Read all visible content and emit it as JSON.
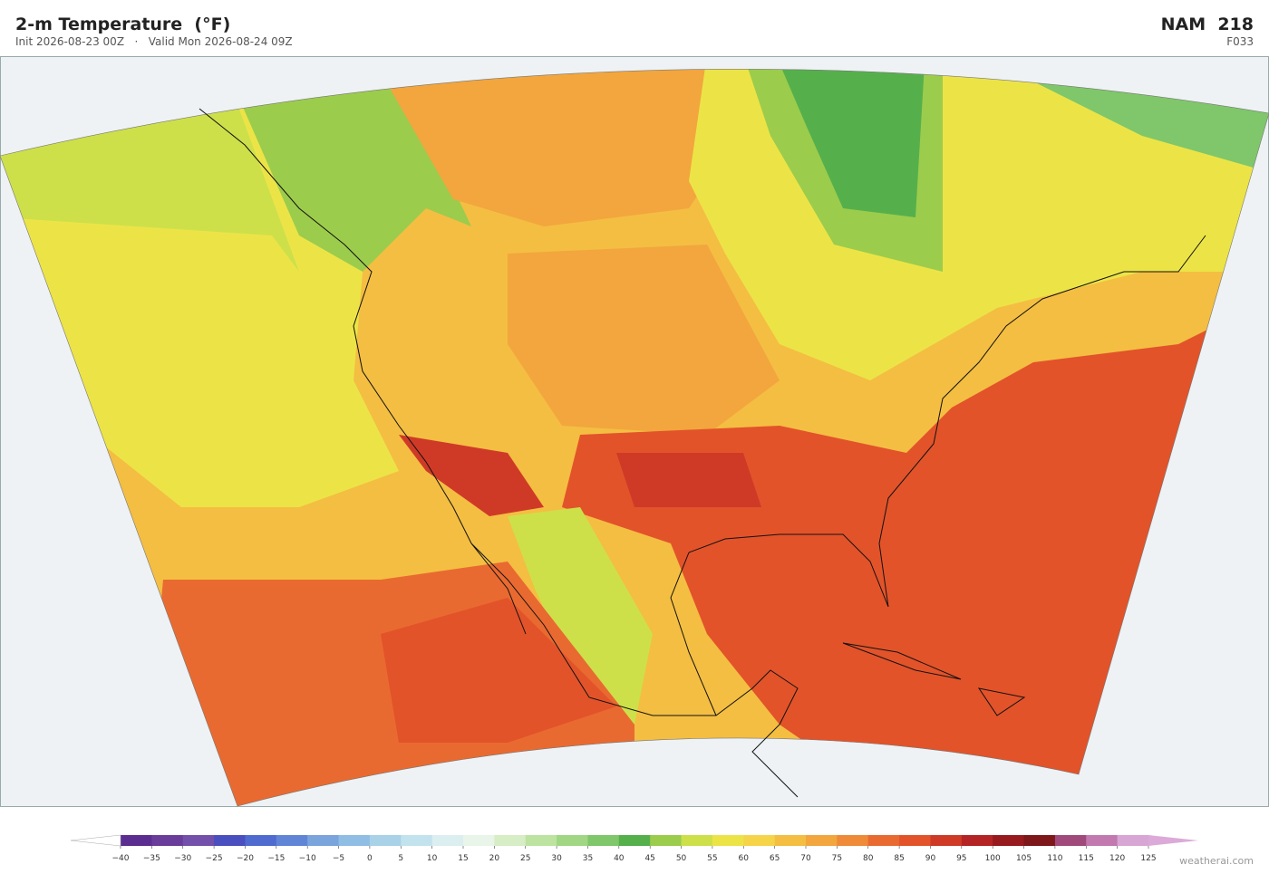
{
  "header": {
    "title": "2-m Temperature  (°F)",
    "subtitle": "Init 2026-08-23 00Z   ·   Valid Mon 2026-08-24 09Z",
    "model": "NAM  218",
    "forecast_hour": "F033"
  },
  "colorbar": {
    "ticks": [
      {
        "value": -40,
        "label": "−40"
      },
      {
        "value": -35,
        "label": "−35"
      },
      {
        "value": -30,
        "label": "−30"
      },
      {
        "value": -25,
        "label": "−25"
      },
      {
        "value": -20,
        "label": "−20"
      },
      {
        "value": -15,
        "label": "−15"
      },
      {
        "value": -10,
        "label": "−10"
      },
      {
        "value": -5,
        "label": "−5"
      },
      0,
      5,
      10,
      15,
      20,
      25,
      30,
      35,
      40,
      45,
      50,
      55,
      60,
      65,
      70,
      75,
      80,
      85,
      90,
      95,
      100,
      105,
      110,
      115,
      120,
      125
    ],
    "colors": [
      "#5c2d91",
      "#6a3d9a",
      "#7350aa",
      "#4a4fbf",
      "#4f6bd0",
      "#6185d6",
      "#7aa4dc",
      "#90bde3",
      "#a9d2e8",
      "#c2e2ee",
      "#dbeef0",
      "#e9f5e8",
      "#d6edc6",
      "#bde3a0",
      "#a0d684",
      "#7fc76a",
      "#55b04c",
      "#9ccc4c",
      "#cde04a",
      "#ece447",
      "#f6d44a",
      "#f4be42",
      "#f2a63d",
      "#ee8a38",
      "#e96a30",
      "#e2532a",
      "#cf3a27",
      "#b52424",
      "#971a1e",
      "#7d1719",
      "#a04a7c",
      "#c279b0",
      "#d8a6d4"
    ],
    "under_color": "#ffffff",
    "over_color": "#dcaad8"
  },
  "footer": {
    "credit": "weatherai.com"
  }
}
